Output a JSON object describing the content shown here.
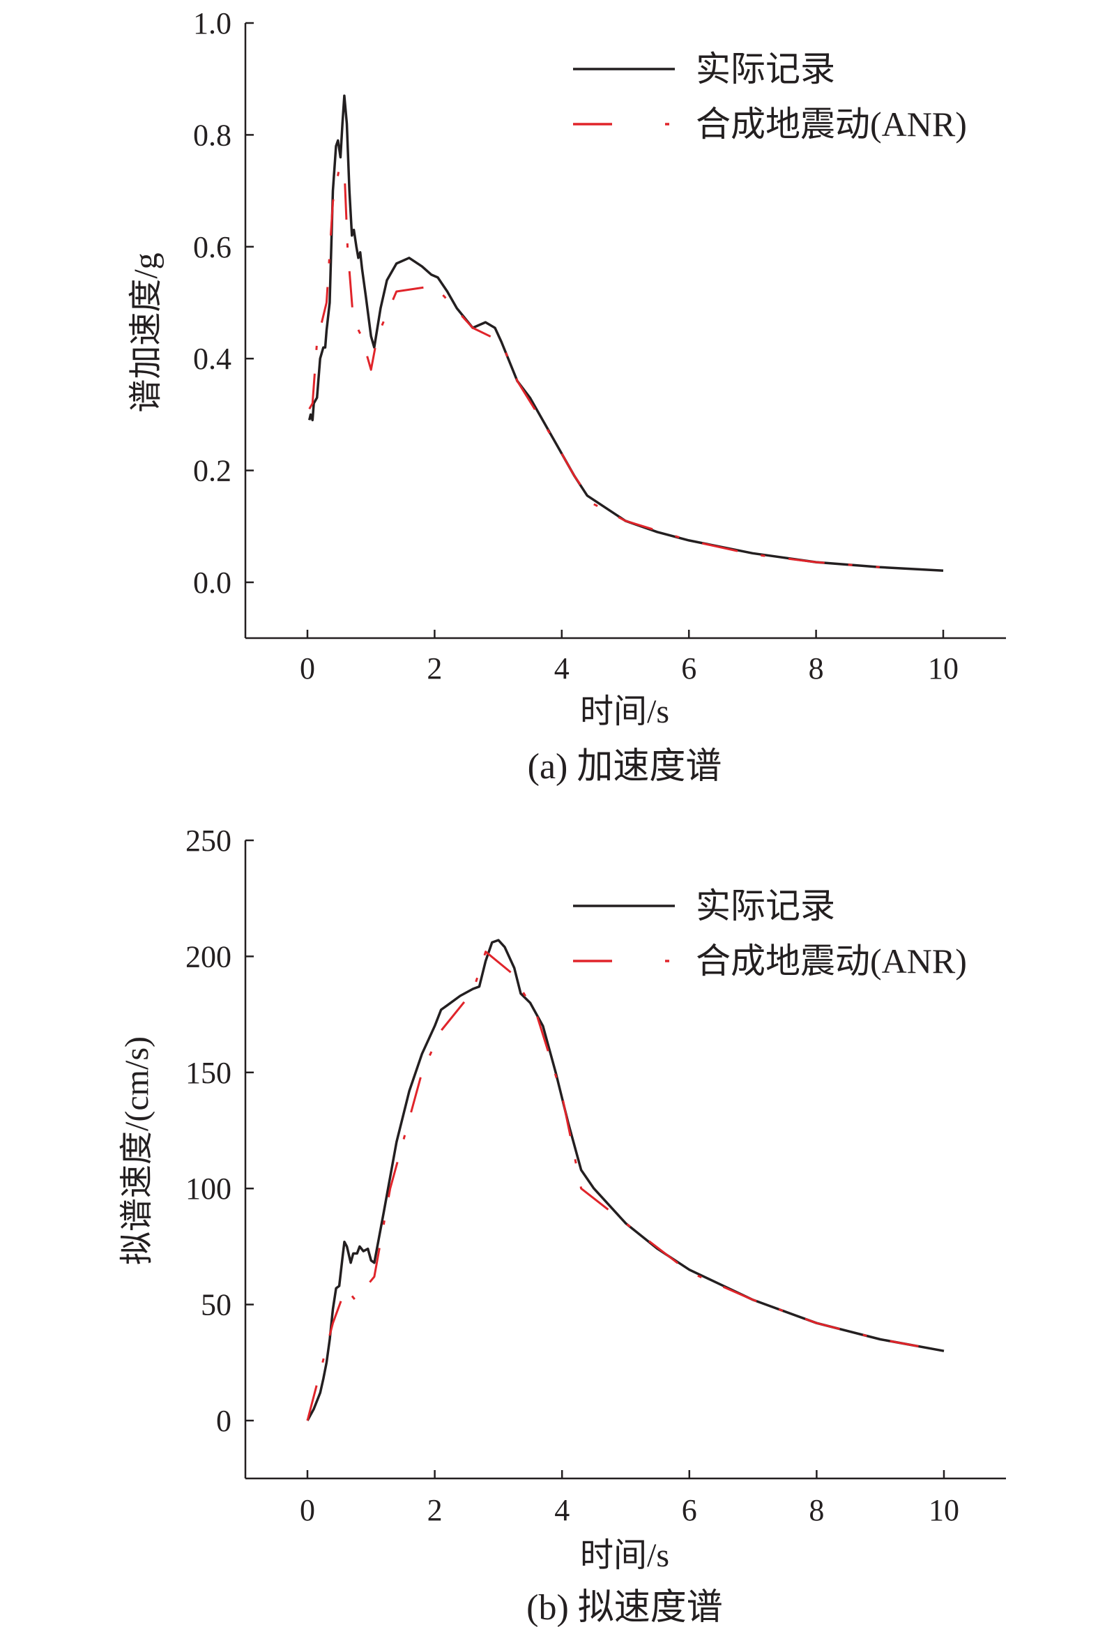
{
  "colors": {
    "actual": "#231f20",
    "synthetic": "#e0242a",
    "axis": "#231f20"
  },
  "chart_data": [
    {
      "type": "line",
      "caption": "(a) 加速度谱",
      "xlabel": "时间/s",
      "ylabel": "谱加速度/g",
      "xlim": [
        -1,
        11
      ],
      "ylim": [
        -0.1,
        1.0
      ],
      "xticks": [
        "0",
        "2",
        "4",
        "6",
        "8",
        "10"
      ],
      "yticks": [
        "0.0",
        "0.2",
        "0.4",
        "0.6",
        "0.8",
        "1.0"
      ],
      "legend_position": "top-right",
      "grid": false,
      "series": [
        {
          "name": "实际记录",
          "style": "solid",
          "x": [
            0.03,
            0.05,
            0.08,
            0.1,
            0.15,
            0.2,
            0.25,
            0.28,
            0.3,
            0.35,
            0.4,
            0.45,
            0.48,
            0.52,
            0.55,
            0.58,
            0.62,
            0.66,
            0.7,
            0.73,
            0.77,
            0.8,
            0.83,
            0.86,
            0.92,
            1.0,
            1.05,
            1.15,
            1.25,
            1.4,
            1.6,
            1.8,
            1.95,
            2.05,
            2.2,
            2.35,
            2.6,
            2.7,
            2.8,
            2.95,
            3.05,
            3.3,
            3.5,
            3.9,
            4.2,
            4.4,
            4.6,
            5.0,
            5.5,
            6,
            7,
            8,
            9,
            10
          ],
          "y": [
            0.29,
            0.3,
            0.29,
            0.32,
            0.33,
            0.4,
            0.42,
            0.42,
            0.45,
            0.5,
            0.7,
            0.78,
            0.79,
            0.76,
            0.82,
            0.87,
            0.82,
            0.7,
            0.62,
            0.63,
            0.6,
            0.58,
            0.59,
            0.56,
            0.51,
            0.44,
            0.42,
            0.49,
            0.54,
            0.57,
            0.58,
            0.565,
            0.55,
            0.545,
            0.52,
            0.49,
            0.455,
            0.46,
            0.465,
            0.455,
            0.43,
            0.36,
            0.33,
            0.25,
            0.19,
            0.155,
            0.14,
            0.11,
            0.09,
            0.075,
            0.052,
            0.036,
            0.027,
            0.021
          ]
        },
        {
          "name": "合成地震动(ANR)",
          "style": "dashed",
          "x": [
            0.03,
            0.08,
            0.15,
            0.3,
            0.4,
            0.5,
            0.58,
            0.63,
            0.72,
            0.85,
            1.0,
            1.1,
            1.4,
            2.0,
            2.6,
            3.05,
            3.3,
            3.9,
            4.2,
            4.5,
            5,
            6,
            7,
            8,
            9
          ],
          "y": [
            0.31,
            0.32,
            0.43,
            0.5,
            0.68,
            0.74,
            0.74,
            0.6,
            0.47,
            0.44,
            0.38,
            0.44,
            0.52,
            0.53,
            0.455,
            0.43,
            0.36,
            0.25,
            0.19,
            0.14,
            0.11,
            0.075,
            0.05,
            0.036,
            0.027
          ]
        }
      ]
    },
    {
      "type": "line",
      "caption": "(b) 拟速度谱",
      "xlabel": "时间/s",
      "ylabel": "拟谱速度/(cm/s)",
      "xlim": [
        -1,
        11
      ],
      "ylim": [
        -25,
        250
      ],
      "xticks": [
        "0",
        "2",
        "4",
        "6",
        "8",
        "10"
      ],
      "yticks": [
        "0",
        "50",
        "100",
        "150",
        "200",
        "250"
      ],
      "legend_position": "top-right",
      "grid": false,
      "series": [
        {
          "name": "实际记录",
          "style": "solid",
          "x": [
            0,
            0.1,
            0.2,
            0.25,
            0.3,
            0.35,
            0.4,
            0.45,
            0.5,
            0.55,
            0.58,
            0.62,
            0.68,
            0.72,
            0.78,
            0.82,
            0.88,
            0.95,
            1.0,
            1.05,
            1.2,
            1.4,
            1.6,
            1.8,
            2.0,
            2.1,
            2.2,
            2.4,
            2.6,
            2.7,
            2.8,
            2.9,
            3.0,
            3.1,
            3.25,
            3.35,
            3.5,
            3.7,
            3.9,
            4.1,
            4.3,
            4.5,
            5,
            5.5,
            6,
            7,
            8,
            9,
            10
          ],
          "y": [
            0,
            5,
            12,
            18,
            25,
            35,
            48,
            57,
            58,
            70,
            77,
            75,
            68,
            72,
            72,
            75,
            73,
            74,
            69,
            68,
            90,
            120,
            142,
            158,
            170,
            177,
            179,
            183,
            186,
            187,
            198,
            206,
            207,
            204,
            195,
            184,
            180,
            170,
            150,
            128,
            108,
            100,
            85,
            74,
            65,
            52,
            42,
            35,
            30
          ]
        },
        {
          "name": "合成地震动(ANR)",
          "style": "dashed",
          "x": [
            0,
            0.4,
            0.6,
            0.75,
            1.05,
            1.3,
            1.8,
            2.1,
            2.6,
            2.8,
            3.2,
            3.6,
            4.0,
            4.3,
            5,
            6,
            7,
            8,
            9,
            9.6
          ],
          "y": [
            0,
            42,
            57,
            52,
            62,
            100,
            150,
            168,
            185,
            202,
            193,
            175,
            140,
            100,
            85,
            64,
            52,
            42,
            35,
            32
          ]
        }
      ]
    }
  ]
}
